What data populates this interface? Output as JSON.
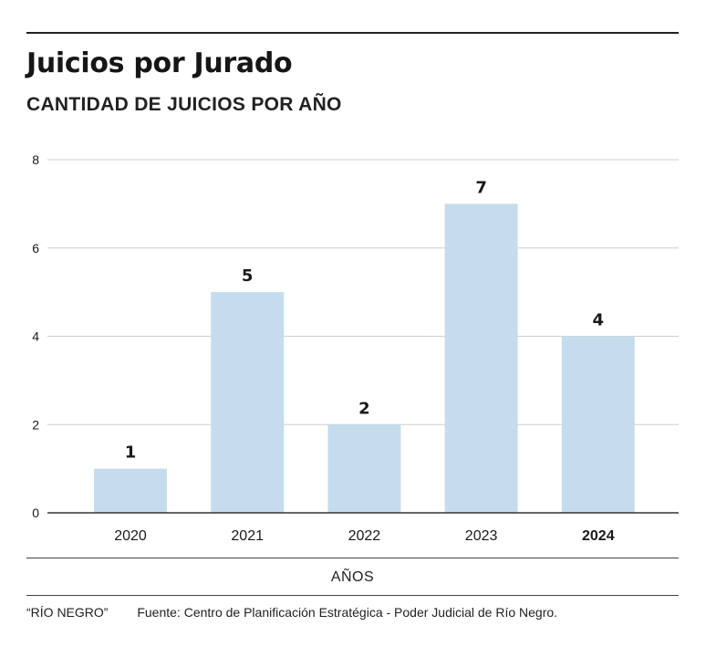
{
  "header": {
    "title": "Juicios por Jurado",
    "subtitle": "CANTIDAD DE JUICIOS POR AÑO"
  },
  "footer": {
    "brand": "“RÍO NEGRO”",
    "source": "Fuente: Centro de Planificación Estratégica - Poder Judicial de Río Negro."
  },
  "chart_data": {
    "type": "bar",
    "title": "Juicios por Jurado",
    "subtitle": "CANTIDAD DE JUICIOS POR AÑO",
    "xlabel": "AÑOS",
    "ylabel": "",
    "categories": [
      "2020",
      "2021",
      "2022",
      "2023",
      "2024"
    ],
    "values": [
      1,
      5,
      2,
      7,
      4
    ],
    "data_labels": [
      "1",
      "5",
      "2",
      "7",
      "4"
    ],
    "bold_category": "2024",
    "ylim": [
      0,
      8
    ],
    "yticks": [
      0,
      2,
      4,
      6,
      8
    ],
    "grid": true,
    "legend": "none",
    "colors": {
      "bar": "#c5dcec",
      "grid": "#cfcfcf",
      "axis": "#333333",
      "text": "#1a1a1a"
    }
  }
}
